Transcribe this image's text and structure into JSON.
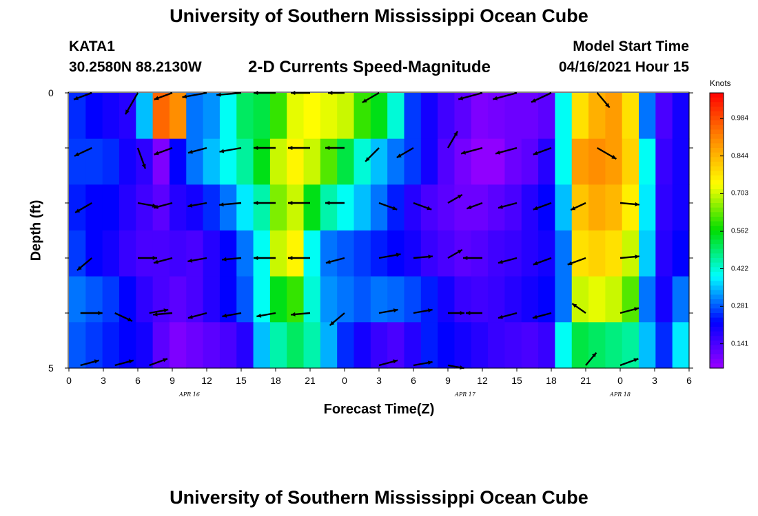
{
  "title_top": "University of Southern Mississippi Ocean Cube",
  "title_bottom": "University of Southern Mississippi Ocean Cube",
  "station": "KATA1",
  "coordinates": "30.2580N  88.2130W",
  "subtitle": "2-D Currents Speed-Magnitude",
  "model_start_label": "Model Start Time",
  "model_start_value": "04/16/2021 Hour 15",
  "chart_data": {
    "type": "heatmap",
    "title": "2-D Currents Speed-Magnitude",
    "xlabel": "Forecast Time(Z)",
    "ylabel": "Depth (ft)",
    "ylim": [
      0,
      5
    ],
    "x_tick_labels": [
      "0",
      "3",
      "6",
      "9",
      "12",
      "15",
      "18",
      "21",
      "0",
      "3",
      "6",
      "9",
      "12",
      "15",
      "18",
      "21",
      "0",
      "3",
      "6"
    ],
    "y_tick_labels": [
      "0",
      "5"
    ],
    "date_labels": [
      "APR  16",
      "APR  17",
      "APR  18"
    ],
    "colorbar": {
      "unit": "Knots",
      "ticks": [
        0.984,
        0.844,
        0.703,
        0.562,
        0.422,
        0.281,
        0.141
      ],
      "range": [
        0.05,
        1.08
      ],
      "colors": [
        "#9900ff",
        "#0000ff",
        "#00ffff",
        "#00dd00",
        "#ffff00",
        "#ff8800",
        "#ff0000"
      ]
    },
    "speed_grid": {
      "rows": 6,
      "columns": 37,
      "values": [
        [
          0.25,
          0.22,
          0.2,
          0.18,
          0.35,
          0.95,
          0.9,
          0.3,
          0.32,
          0.4,
          0.5,
          0.52,
          0.6,
          0.72,
          0.74,
          0.72,
          0.7,
          0.6,
          0.55,
          0.42,
          0.26,
          0.2,
          0.15,
          0.12,
          0.08,
          0.09,
          0.1,
          0.1,
          0.12,
          0.4,
          0.78,
          0.85,
          0.88,
          0.78,
          0.3,
          0.14,
          0.2
        ],
        [
          0.26,
          0.26,
          0.25,
          0.2,
          0.17,
          0.08,
          0.22,
          0.3,
          0.35,
          0.4,
          0.46,
          0.55,
          0.7,
          0.75,
          0.7,
          0.62,
          0.52,
          0.42,
          0.35,
          0.3,
          0.26,
          0.2,
          0.13,
          0.09,
          0.06,
          0.06,
          0.1,
          0.12,
          0.18,
          0.4,
          0.88,
          0.9,
          0.88,
          0.8,
          0.4,
          0.16,
          0.2
        ],
        [
          0.24,
          0.22,
          0.22,
          0.18,
          0.15,
          0.12,
          0.18,
          0.2,
          0.25,
          0.3,
          0.38,
          0.45,
          0.65,
          0.7,
          0.55,
          0.45,
          0.4,
          0.35,
          0.3,
          0.24,
          0.18,
          0.14,
          0.12,
          0.1,
          0.1,
          0.12,
          0.14,
          0.18,
          0.22,
          0.35,
          0.82,
          0.86,
          0.84,
          0.76,
          0.38,
          0.17,
          0.2
        ],
        [
          0.26,
          0.22,
          0.2,
          0.16,
          0.14,
          0.14,
          0.15,
          0.14,
          0.18,
          0.22,
          0.3,
          0.4,
          0.7,
          0.75,
          0.4,
          0.3,
          0.28,
          0.26,
          0.24,
          0.22,
          0.2,
          0.16,
          0.14,
          0.12,
          0.13,
          0.15,
          0.16,
          0.18,
          0.2,
          0.3,
          0.78,
          0.8,
          0.78,
          0.7,
          0.36,
          0.18,
          0.22
        ],
        [
          0.3,
          0.28,
          0.26,
          0.22,
          0.17,
          0.14,
          0.12,
          0.14,
          0.18,
          0.22,
          0.28,
          0.4,
          0.55,
          0.6,
          0.42,
          0.32,
          0.3,
          0.28,
          0.3,
          0.29,
          0.27,
          0.24,
          0.2,
          0.16,
          0.15,
          0.16,
          0.18,
          0.2,
          0.22,
          0.3,
          0.7,
          0.72,
          0.7,
          0.62,
          0.3,
          0.2,
          0.3
        ],
        [
          0.28,
          0.26,
          0.24,
          0.22,
          0.2,
          0.12,
          0.08,
          0.1,
          0.12,
          0.14,
          0.18,
          0.35,
          0.45,
          0.5,
          0.45,
          0.34,
          0.25,
          0.2,
          0.16,
          0.14,
          0.18,
          0.24,
          0.22,
          0.2,
          0.18,
          0.16,
          0.15,
          0.14,
          0.16,
          0.4,
          0.52,
          0.5,
          0.48,
          0.46,
          0.35,
          0.25,
          0.38
        ]
      ]
    },
    "current_vectors": [
      {
        "hour": 2,
        "depth": 0.0,
        "dir": 250,
        "len": 0.7
      },
      {
        "hour": 6,
        "depth": 0.0,
        "dir": 210,
        "len": 0.9
      },
      {
        "hour": 9,
        "depth": 0.0,
        "dir": 250,
        "len": 0.7
      },
      {
        "hour": 12,
        "depth": 0.0,
        "dir": 260,
        "len": 0.9
      },
      {
        "hour": 15,
        "depth": 0.0,
        "dir": 265,
        "len": 0.9
      },
      {
        "hour": 18,
        "depth": 0.0,
        "dir": 270,
        "len": 0.8
      },
      {
        "hour": 21,
        "depth": 0.0,
        "dir": 270,
        "len": 0.7
      },
      {
        "hour": 24,
        "depth": 0.0,
        "dir": 270,
        "len": 0.6
      },
      {
        "hour": 27,
        "depth": 0.0,
        "dir": 240,
        "len": 0.7
      },
      {
        "hour": 36,
        "depth": 0.0,
        "dir": 255,
        "len": 0.9
      },
      {
        "hour": 39,
        "depth": 0.0,
        "dir": 255,
        "len": 0.9
      },
      {
        "hour": 42,
        "depth": 0.0,
        "dir": 245,
        "len": 0.8
      },
      {
        "hour": 46,
        "depth": 0.0,
        "dir": 140,
        "len": 0.7
      },
      {
        "hour": 2,
        "depth": 1.0,
        "dir": 245,
        "len": 0.7
      },
      {
        "hour": 6,
        "depth": 1.0,
        "dir": 160,
        "len": 0.8
      },
      {
        "hour": 9,
        "depth": 1.0,
        "dir": 250,
        "len": 0.7
      },
      {
        "hour": 12,
        "depth": 1.0,
        "dir": 255,
        "len": 0.7
      },
      {
        "hour": 15,
        "depth": 1.0,
        "dir": 260,
        "len": 0.8
      },
      {
        "hour": 18,
        "depth": 1.0,
        "dir": 270,
        "len": 0.8
      },
      {
        "hour": 21,
        "depth": 1.0,
        "dir": 270,
        "len": 0.8
      },
      {
        "hour": 24,
        "depth": 1.0,
        "dir": 270,
        "len": 0.7
      },
      {
        "hour": 27,
        "depth": 1.0,
        "dir": 225,
        "len": 0.7
      },
      {
        "hour": 30,
        "depth": 1.0,
        "dir": 240,
        "len": 0.7
      },
      {
        "hour": 33,
        "depth": 1.0,
        "dir": 30,
        "len": 0.7
      },
      {
        "hour": 36,
        "depth": 1.0,
        "dir": 255,
        "len": 0.8
      },
      {
        "hour": 39,
        "depth": 1.0,
        "dir": 255,
        "len": 0.8
      },
      {
        "hour": 42,
        "depth": 1.0,
        "dir": 250,
        "len": 0.7
      },
      {
        "hour": 46,
        "depth": 1.0,
        "dir": 120,
        "len": 0.8
      },
      {
        "hour": 2,
        "depth": 2.0,
        "dir": 240,
        "len": 0.7
      },
      {
        "hour": 6,
        "depth": 2.0,
        "dir": 100,
        "len": 0.7
      },
      {
        "hour": 9,
        "depth": 2.0,
        "dir": 255,
        "len": 0.7
      },
      {
        "hour": 12,
        "depth": 2.0,
        "dir": 260,
        "len": 0.7
      },
      {
        "hour": 15,
        "depth": 2.0,
        "dir": 265,
        "len": 0.8
      },
      {
        "hour": 18,
        "depth": 2.0,
        "dir": 270,
        "len": 0.8
      },
      {
        "hour": 21,
        "depth": 2.0,
        "dir": 270,
        "len": 0.8
      },
      {
        "hour": 24,
        "depth": 2.0,
        "dir": 270,
        "len": 0.7
      },
      {
        "hour": 27,
        "depth": 2.0,
        "dir": 110,
        "len": 0.7
      },
      {
        "hour": 30,
        "depth": 2.0,
        "dir": 110,
        "len": 0.7
      },
      {
        "hour": 33,
        "depth": 2.0,
        "dir": 60,
        "len": 0.6
      },
      {
        "hour": 36,
        "depth": 2.0,
        "dir": 250,
        "len": 0.6
      },
      {
        "hour": 39,
        "depth": 2.0,
        "dir": 255,
        "len": 0.7
      },
      {
        "hour": 42,
        "depth": 2.0,
        "dir": 250,
        "len": 0.7
      },
      {
        "hour": 45,
        "depth": 2.0,
        "dir": 245,
        "len": 0.6
      },
      {
        "hour": 48,
        "depth": 2.0,
        "dir": 95,
        "len": 0.7
      },
      {
        "hour": 2,
        "depth": 3.0,
        "dir": 230,
        "len": 0.7
      },
      {
        "hour": 6,
        "depth": 3.0,
        "dir": 90,
        "len": 0.7
      },
      {
        "hour": 9,
        "depth": 3.0,
        "dir": 255,
        "len": 0.7
      },
      {
        "hour": 12,
        "depth": 3.0,
        "dir": 260,
        "len": 0.7
      },
      {
        "hour": 15,
        "depth": 3.0,
        "dir": 265,
        "len": 0.7
      },
      {
        "hour": 18,
        "depth": 3.0,
        "dir": 270,
        "len": 0.8
      },
      {
        "hour": 21,
        "depth": 3.0,
        "dir": 270,
        "len": 0.8
      },
      {
        "hour": 24,
        "depth": 3.0,
        "dir": 255,
        "len": 0.7
      },
      {
        "hour": 27,
        "depth": 3.0,
        "dir": 80,
        "len": 0.8
      },
      {
        "hour": 30,
        "depth": 3.0,
        "dir": 85,
        "len": 0.7
      },
      {
        "hour": 33,
        "depth": 3.0,
        "dir": 60,
        "len": 0.6
      },
      {
        "hour": 36,
        "depth": 3.0,
        "dir": 270,
        "len": 0.7
      },
      {
        "hour": 39,
        "depth": 3.0,
        "dir": 255,
        "len": 0.7
      },
      {
        "hour": 42,
        "depth": 3.0,
        "dir": 250,
        "len": 0.7
      },
      {
        "hour": 45,
        "depth": 3.0,
        "dir": 250,
        "len": 0.7
      },
      {
        "hour": 48,
        "depth": 3.0,
        "dir": 85,
        "len": 0.7
      },
      {
        "hour": 1,
        "depth": 4.0,
        "dir": 90,
        "len": 0.8
      },
      {
        "hour": 4,
        "depth": 4.0,
        "dir": 115,
        "len": 0.7
      },
      {
        "hour": 7,
        "depth": 4.0,
        "dir": 80,
        "len": 0.7
      },
      {
        "hour": 9,
        "depth": 4.0,
        "dir": 265,
        "len": 0.7
      },
      {
        "hour": 12,
        "depth": 4.0,
        "dir": 255,
        "len": 0.7
      },
      {
        "hour": 15,
        "depth": 4.0,
        "dir": 260,
        "len": 0.7
      },
      {
        "hour": 18,
        "depth": 4.0,
        "dir": 260,
        "len": 0.7
      },
      {
        "hour": 21,
        "depth": 4.0,
        "dir": 265,
        "len": 0.7
      },
      {
        "hour": 24,
        "depth": 4.0,
        "dir": 230,
        "len": 0.7
      },
      {
        "hour": 27,
        "depth": 4.0,
        "dir": 80,
        "len": 0.7
      },
      {
        "hour": 30,
        "depth": 4.0,
        "dir": 80,
        "len": 0.7
      },
      {
        "hour": 33,
        "depth": 4.0,
        "dir": 90,
        "len": 0.6
      },
      {
        "hour": 36,
        "depth": 4.0,
        "dir": 270,
        "len": 0.6
      },
      {
        "hour": 39,
        "depth": 4.0,
        "dir": 255,
        "len": 0.7
      },
      {
        "hour": 42,
        "depth": 4.0,
        "dir": 255,
        "len": 0.7
      },
      {
        "hour": 45,
        "depth": 4.0,
        "dir": 305,
        "len": 0.6
      },
      {
        "hour": 48,
        "depth": 4.0,
        "dir": 75,
        "len": 0.7
      },
      {
        "hour": 1,
        "depth": 4.95,
        "dir": 75,
        "len": 0.7
      },
      {
        "hour": 4,
        "depth": 4.95,
        "dir": 75,
        "len": 0.7
      },
      {
        "hour": 7,
        "depth": 4.95,
        "dir": 70,
        "len": 0.7
      },
      {
        "hour": 27,
        "depth": 4.95,
        "dir": 75,
        "len": 0.7
      },
      {
        "hour": 30,
        "depth": 4.95,
        "dir": 80,
        "len": 0.7
      },
      {
        "hour": 33,
        "depth": 4.95,
        "dir": 100,
        "len": 0.6
      },
      {
        "hour": 45,
        "depth": 4.95,
        "dir": 40,
        "len": 0.6
      },
      {
        "hour": 48,
        "depth": 4.95,
        "dir": 70,
        "len": 0.7
      }
    ]
  }
}
